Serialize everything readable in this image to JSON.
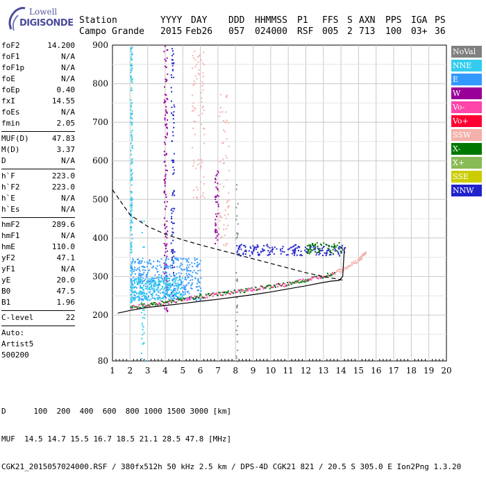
{
  "logo": {
    "line1": "Lowell",
    "line2": "DIGISONDE"
  },
  "header": {
    "labels": [
      "Station",
      "YYYY",
      "DAY",
      "DDD",
      "HHMMSS",
      "P1",
      "FFS",
      "S",
      "AXN",
      "PPS",
      "IGA",
      "PS"
    ],
    "values": [
      "Campo Grande",
      "2015",
      "Feb26",
      "057",
      "024000",
      "RSF",
      "005",
      "2",
      "713",
      "100",
      "03+",
      "36"
    ]
  },
  "params": [
    {
      "label": "foF2",
      "value": "14.200"
    },
    {
      "label": "foF1",
      "value": "N/A"
    },
    {
      "label": "foF1p",
      "value": "N/A"
    },
    {
      "label": "foE",
      "value": "N/A"
    },
    {
      "label": "foEp",
      "value": "0.40"
    },
    {
      "label": "fxI",
      "value": "14.55"
    },
    {
      "label": "foEs",
      "value": "N/A"
    },
    {
      "label": "fmin",
      "value": "2.05"
    }
  ],
  "params2": [
    {
      "label": "MUF(D)",
      "value": "47.83"
    },
    {
      "label": "M(D)",
      "value": "3.37"
    },
    {
      "label": "D",
      "value": "N/A"
    }
  ],
  "params3": [
    {
      "label": "h`F",
      "value": "223.0"
    },
    {
      "label": "h`F2",
      "value": "223.0"
    },
    {
      "label": "h`E",
      "value": "N/A"
    },
    {
      "label": "h`Es",
      "value": "N/A"
    }
  ],
  "params4": [
    {
      "label": "hmF2",
      "value": "289.6"
    },
    {
      "label": "hmF1",
      "value": "N/A"
    },
    {
      "label": "hmE",
      "value": "110.0"
    },
    {
      "label": "yF2",
      "value": "47.1"
    },
    {
      "label": "yF1",
      "value": "N/A"
    },
    {
      "label": "yE",
      "value": "20.0"
    },
    {
      "label": "B0",
      "value": "47.5"
    },
    {
      "label": "B1",
      "value": "1.96"
    }
  ],
  "params5": [
    {
      "label": "C-level",
      "value": "22"
    }
  ],
  "auto": {
    "line1": "Auto:",
    "line2": "Artist5",
    "line3": "500200"
  },
  "legend": [
    {
      "label": "NoVal",
      "color": "#808080"
    },
    {
      "label": "NNE",
      "color": "#33ccee"
    },
    {
      "label": "E",
      "color": "#3399ff"
    },
    {
      "label": "W",
      "color": "#990099"
    },
    {
      "label": "Vo-",
      "color": "#ff44aa"
    },
    {
      "label": "Vo+",
      "color": "#ff0033"
    },
    {
      "label": "SSW",
      "color": "#f4b0aa"
    },
    {
      "label": "X-",
      "color": "#007700"
    },
    {
      "label": "X+",
      "color": "#88bb55"
    },
    {
      "label": "SSE",
      "color": "#cccc00"
    },
    {
      "label": "NNW",
      "color": "#2222cc"
    }
  ],
  "bottom": {
    "line1": "D      100  200  400  600  800 1000 1500 3000 [km]",
    "line2": "MUF  14.5 14.7 15.5 16.7 18.5 21.1 28.5 47.8 [MHz]",
    "line3": "CGK21_2015057024000.RSF / 380fx512h 50 kHz 2.5 km / DPS-4D CGK21 821 / 20.5 S 305.0 E Ion2Png 1.3.20"
  },
  "chart_data": {
    "type": "scatter",
    "xlim": [
      1,
      20
    ],
    "ylim": [
      80,
      900
    ],
    "x_ticks": [
      "1",
      "2",
      "3",
      "4",
      "5",
      "6",
      "7",
      "8",
      "9",
      "10",
      "11",
      "12",
      "13",
      "14",
      "15",
      "16",
      "17",
      "18",
      "19",
      "20"
    ],
    "y_ticks": [
      "80",
      "200",
      "300",
      "400",
      "500",
      "600",
      "700",
      "800",
      "900"
    ],
    "grid": true,
    "series": [
      {
        "name": "",
        "description_key": "profile_solid",
        "x": [
          1.3,
          2,
          3,
          4,
          5,
          6,
          7,
          8,
          9,
          10,
          11,
          12,
          12.8,
          13.4,
          13.9,
          14.1,
          14.15,
          14.2
        ],
        "y": [
          205,
          212,
          220,
          225,
          230,
          236,
          241,
          247,
          253,
          260,
          268,
          276,
          283,
          288,
          290,
          300,
          340,
          375
        ]
      },
      {
        "name": "",
        "description_key": "profile_dashed",
        "x": [
          1,
          2,
          3,
          4,
          5,
          6,
          7,
          8,
          9,
          10,
          11,
          12,
          13,
          14.2
        ],
        "y": [
          525,
          460,
          430,
          410,
          395,
          382,
          370,
          358,
          346,
          334,
          322,
          310,
          300,
          290
        ]
      },
      {
        "name": "",
        "description_key": "trace",
        "x": [
          2,
          3,
          4,
          5,
          6,
          7,
          8,
          9,
          10,
          11,
          12,
          13,
          14,
          15,
          15.4
        ],
        "y": [
          222,
          228,
          235,
          243,
          250,
          256,
          262,
          269,
          276,
          283,
          293,
          304,
          318,
          345,
          365
        ]
      }
    ]
  }
}
